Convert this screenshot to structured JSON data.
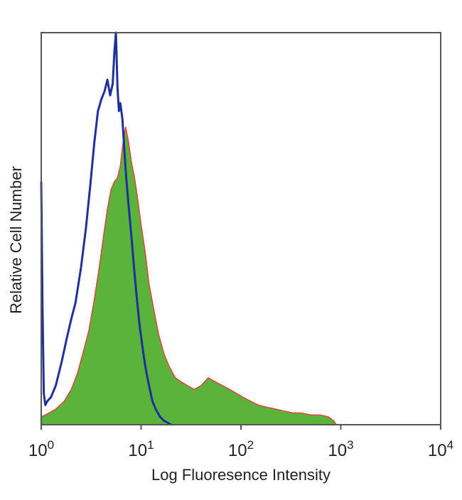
{
  "chart_data": {
    "type": "area",
    "title": "",
    "xlabel": "Log Fluoresence Intensity",
    "ylabel": "Relative Cell Number",
    "xscale": "log",
    "xlim": [
      1,
      10000
    ],
    "ylim": [
      0,
      100
    ],
    "grid": false,
    "legend": "none",
    "x_ticks": [
      {
        "value": 1,
        "base": "10",
        "exp": "0"
      },
      {
        "value": 10,
        "base": "10",
        "exp": "1"
      },
      {
        "value": 100,
        "base": "10",
        "exp": "2"
      },
      {
        "value": 1000,
        "base": "10",
        "exp": "3"
      },
      {
        "value": 10000,
        "base": "10",
        "exp": "4"
      }
    ],
    "series": [
      {
        "style": "filled",
        "fill_color": "#5cb33b",
        "stroke_color": "#e0443a",
        "x": [
          1.0,
          1.2,
          1.4,
          1.7,
          2.0,
          2.3,
          2.6,
          3.0,
          3.4,
          3.8,
          4.2,
          4.6,
          5.0,
          5.4,
          5.8,
          6.2,
          6.6,
          7.0,
          7.5,
          8.0,
          8.6,
          9.2,
          10,
          11,
          12,
          13.5,
          15,
          17,
          19,
          22,
          25,
          29,
          34,
          40,
          47,
          55,
          65,
          77,
          90,
          105,
          125,
          150,
          180,
          220,
          270,
          330,
          400,
          500,
          620,
          750,
          850,
          900
        ],
        "y": [
          2,
          3,
          4,
          6,
          9,
          13,
          18,
          24,
          32,
          40,
          48,
          55,
          60,
          62,
          63,
          66,
          72,
          76,
          72,
          67,
          63,
          58,
          51,
          44,
          36,
          29,
          23,
          18,
          15,
          12,
          11,
          10,
          9,
          10,
          12,
          11,
          10,
          9,
          8,
          7,
          6,
          5,
          4.5,
          4,
          3.5,
          3,
          3,
          2.5,
          2.5,
          2,
          1,
          0
        ]
      },
      {
        "style": "line",
        "stroke_color": "#1f2f9c",
        "x": [
          1.0,
          1.03,
          1.06,
          1.1,
          1.15,
          1.25,
          1.4,
          1.6,
          1.8,
          2.0,
          2.2,
          2.5,
          2.8,
          3.1,
          3.4,
          3.7,
          4.0,
          4.3,
          4.6,
          4.9,
          5.2,
          5.4,
          5.6,
          5.8,
          6.0,
          6.2,
          6.5,
          6.8,
          7.1,
          7.5,
          8.0,
          8.5,
          9.0,
          9.6,
          10.3,
          11,
          12,
          13,
          14,
          15.5,
          17,
          18.5,
          20
        ],
        "y": [
          62,
          30,
          8,
          5,
          6,
          7,
          10,
          16,
          22,
          27,
          31,
          40,
          50,
          61,
          72,
          80,
          83,
          85,
          88,
          84,
          87,
          95,
          100,
          86,
          80,
          82,
          78,
          70,
          63,
          56,
          48,
          40,
          33,
          26,
          20,
          15,
          10,
          6,
          4,
          2,
          1,
          0.5,
          0
        ]
      }
    ]
  }
}
